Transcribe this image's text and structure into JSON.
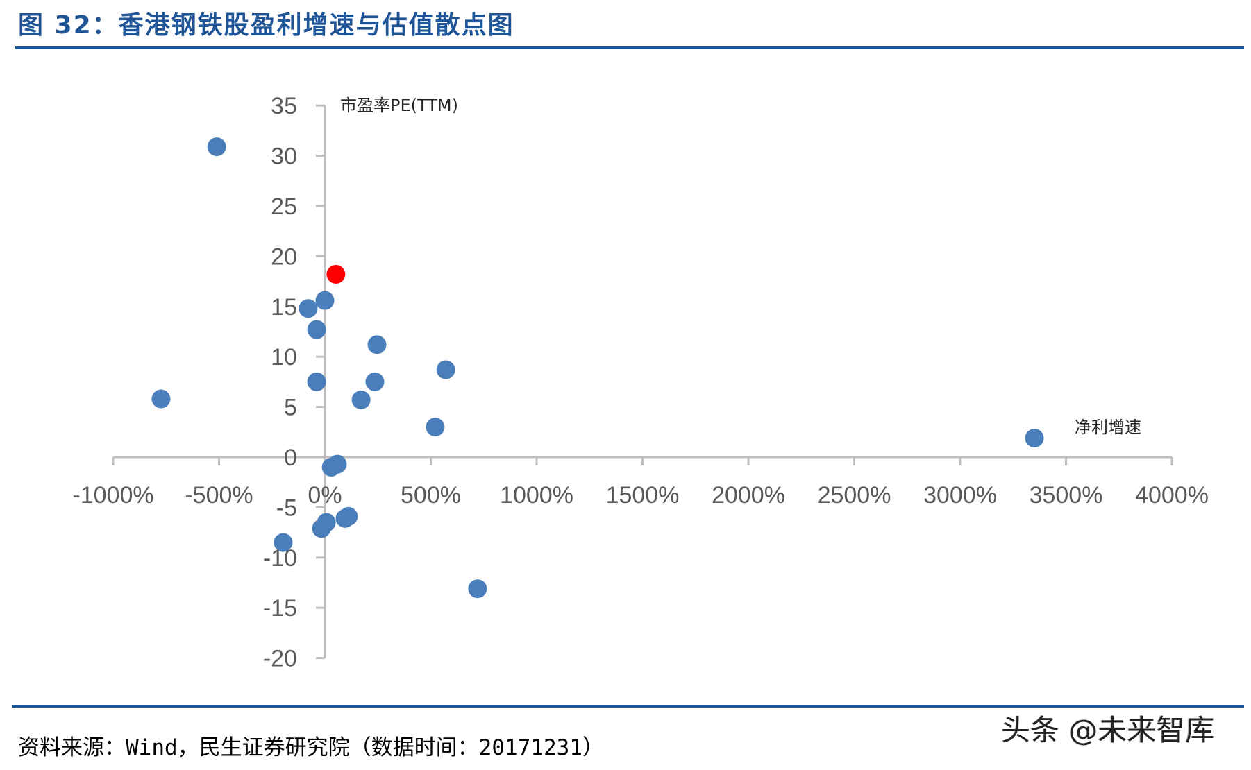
{
  "header": {
    "title": "图 32：香港钢铁股盈利增速与估值散点图"
  },
  "footer": {
    "source": "资料来源：Wind，民生证券研究院（数据时间：20171231）",
    "watermark": "头条 @未来智库"
  },
  "colors": {
    "title": "#1f5597",
    "point": "#4a7ebb",
    "highlight_point": "#ff0000",
    "axis": "#bfbfbf",
    "tick_label": "#595959"
  },
  "chart_data": {
    "type": "scatter",
    "title": "香港钢铁股盈利增速与估值散点图",
    "xlabel": "净利增速",
    "ylabel": "市盈率PE(TTM)",
    "xlim": [
      -1000,
      4000
    ],
    "ylim": [
      -20,
      35
    ],
    "x_unit": "%",
    "x_ticks": [
      "-1000%",
      "-500%",
      "0%",
      "500%",
      "1000%",
      "1500%",
      "2000%",
      "2500%",
      "3000%",
      "3500%",
      "4000%"
    ],
    "y_ticks": [
      "35",
      "30",
      "25",
      "20",
      "15",
      "10",
      "5",
      "0",
      "-5",
      "-10",
      "-15",
      "-20"
    ],
    "grid": false,
    "legend": "none",
    "series": [
      {
        "name": "香港钢铁股",
        "color": "#4a7ebb",
        "points": [
          {
            "x": -511,
            "y": 30.9
          },
          {
            "x": -774,
            "y": 5.8
          },
          {
            "x": 0,
            "y": 15.6
          },
          {
            "x": -79,
            "y": 14.8
          },
          {
            "x": -39,
            "y": 12.7
          },
          {
            "x": 246,
            "y": 11.2
          },
          {
            "x": 571,
            "y": 8.7
          },
          {
            "x": -39,
            "y": 7.5
          },
          {
            "x": 236,
            "y": 7.5
          },
          {
            "x": 171,
            "y": 5.7
          },
          {
            "x": 521,
            "y": 3.0
          },
          {
            "x": 3351,
            "y": 1.9
          },
          {
            "x": 30,
            "y": -1.0
          },
          {
            "x": 59,
            "y": -0.7
          },
          {
            "x": 7,
            "y": -6.5
          },
          {
            "x": -16,
            "y": -7.1
          },
          {
            "x": 95,
            "y": -6.1
          },
          {
            "x": 111,
            "y": -5.9
          },
          {
            "x": -197,
            "y": -8.5
          },
          {
            "x": 721,
            "y": -13.1
          }
        ]
      },
      {
        "name": "highlighted",
        "color": "#ff0000",
        "points": [
          {
            "x": 52,
            "y": 18.2
          }
        ]
      }
    ]
  }
}
